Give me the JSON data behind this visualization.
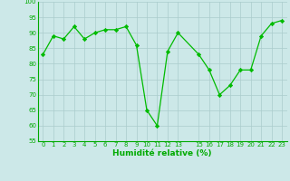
{
  "x": [
    0,
    1,
    2,
    3,
    4,
    5,
    6,
    7,
    8,
    9,
    10,
    11,
    12,
    13,
    15,
    16,
    17,
    18,
    19,
    20,
    21,
    22,
    23
  ],
  "y": [
    83,
    89,
    88,
    92,
    88,
    90,
    91,
    91,
    92,
    86,
    65,
    60,
    84,
    90,
    83,
    78,
    70,
    73,
    78,
    78,
    89,
    93,
    94
  ],
  "line_color": "#00bb00",
  "marker": "D",
  "marker_size": 2.2,
  "bg_color": "#cce8e8",
  "grid_color": "#aacccc",
  "xlabel": "Humidité relative (%)",
  "xlabel_color": "#00aa00",
  "tick_color": "#00aa00",
  "ylim": [
    55,
    100
  ],
  "yticks": [
    55,
    60,
    65,
    70,
    75,
    80,
    85,
    90,
    95,
    100
  ],
  "xticks": [
    0,
    1,
    2,
    3,
    4,
    5,
    6,
    7,
    8,
    9,
    10,
    11,
    12,
    13,
    15,
    16,
    17,
    18,
    19,
    20,
    21,
    22,
    23
  ],
  "xlim": [
    -0.5,
    23.5
  ]
}
